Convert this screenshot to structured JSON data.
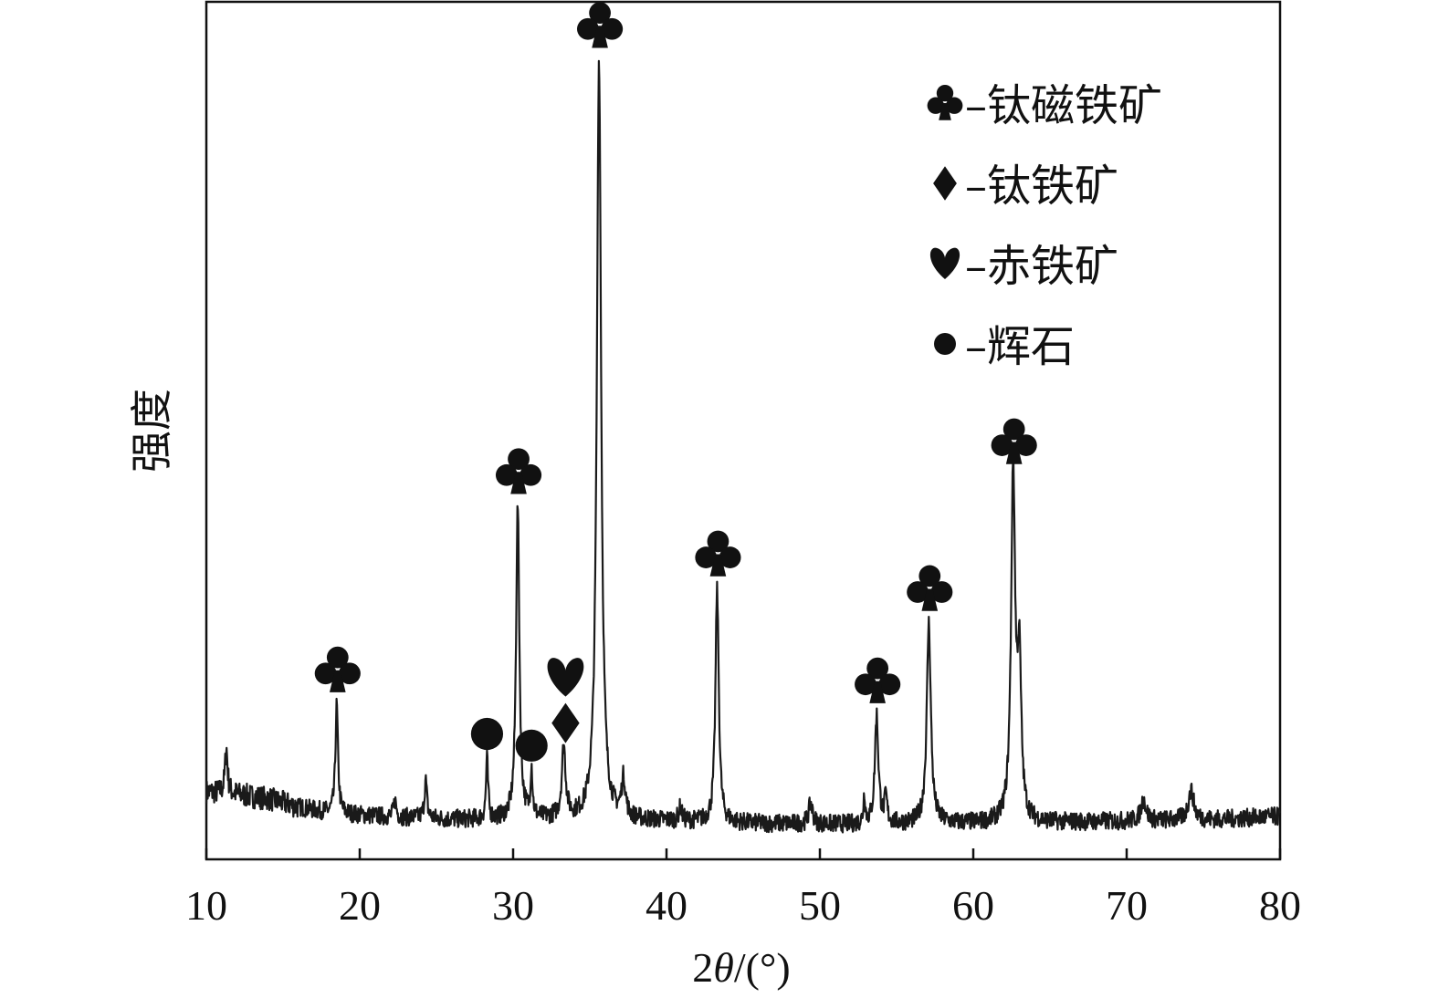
{
  "chart_data": {
    "type": "line",
    "title": "",
    "xlabel_prefix": "2",
    "xlabel_var": "θ",
    "xlabel_unit": "/(°)",
    "ylabel": "强度",
    "xlim": [
      10,
      80
    ],
    "ylim": [
      0,
      100
    ],
    "x_ticks": [
      10,
      20,
      30,
      40,
      50,
      60,
      70,
      80
    ],
    "y_ticks_shown": false,
    "grid": false,
    "legend_position": "top-right",
    "line_color": "#1a1a1a",
    "baseline": [
      {
        "x": 10,
        "y": 7.3
      },
      {
        "x": 12,
        "y": 7.0
      },
      {
        "x": 14,
        "y": 6.5
      },
      {
        "x": 16,
        "y": 5.5
      },
      {
        "x": 18,
        "y": 4.8
      },
      {
        "x": 22,
        "y": 4.3
      },
      {
        "x": 26,
        "y": 4.0
      },
      {
        "x": 30,
        "y": 4.0
      },
      {
        "x": 34,
        "y": 4.0
      },
      {
        "x": 40,
        "y": 3.8
      },
      {
        "x": 46,
        "y": 3.5
      },
      {
        "x": 52,
        "y": 3.4
      },
      {
        "x": 58,
        "y": 3.5
      },
      {
        "x": 64,
        "y": 3.6
      },
      {
        "x": 70,
        "y": 3.8
      },
      {
        "x": 76,
        "y": 4.0
      },
      {
        "x": 80,
        "y": 4.4
      }
    ],
    "peaks": [
      {
        "x": 11.3,
        "height": 5.5,
        "width": 0.1
      },
      {
        "x": 18.5,
        "height": 13.0,
        "width": 0.1,
        "marker": "club"
      },
      {
        "x": 22.3,
        "height": 2.0,
        "width": 0.1
      },
      {
        "x": 24.3,
        "height": 4.5,
        "width": 0.1
      },
      {
        "x": 28.3,
        "height": 7.2,
        "width": 0.08,
        "marker": "circle"
      },
      {
        "x": 30.3,
        "height": 37.5,
        "width": 0.13,
        "marker": "club"
      },
      {
        "x": 31.2,
        "height": 5.8,
        "width": 0.08,
        "marker": "circle"
      },
      {
        "x": 33.3,
        "height": 8.5,
        "width": 0.15,
        "marker": "heart-diamond"
      },
      {
        "x": 35.6,
        "height": 91.0,
        "width": 0.17,
        "marker": "club"
      },
      {
        "x": 37.2,
        "height": 4.5,
        "width": 0.15
      },
      {
        "x": 40.9,
        "height": 1.6,
        "width": 0.12
      },
      {
        "x": 43.3,
        "height": 28.0,
        "width": 0.13,
        "marker": "club"
      },
      {
        "x": 49.4,
        "height": 2.5,
        "width": 0.15
      },
      {
        "x": 52.9,
        "height": 3.5,
        "width": 0.07
      },
      {
        "x": 53.7,
        "height": 13.0,
        "width": 0.14,
        "marker": "club"
      },
      {
        "x": 54.3,
        "height": 3.0,
        "width": 0.1
      },
      {
        "x": 57.1,
        "height": 24.0,
        "width": 0.16,
        "marker": "club"
      },
      {
        "x": 62.6,
        "height": 41.5,
        "width": 0.16,
        "marker": "club"
      },
      {
        "x": 63.0,
        "height": 18.0,
        "width": 0.15
      },
      {
        "x": 71.1,
        "height": 2.5,
        "width": 0.2
      },
      {
        "x": 74.2,
        "height": 3.5,
        "width": 0.22
      }
    ],
    "series": [
      {
        "legend": [
          {
            "marker": "club",
            "label": "–钛磁铁矿"
          },
          {
            "marker": "diamond",
            "label": "–钛铁矿"
          },
          {
            "marker": "heart",
            "label": "–赤铁矿"
          },
          {
            "marker": "circle",
            "label": "–辉石"
          }
        ]
      }
    ]
  }
}
